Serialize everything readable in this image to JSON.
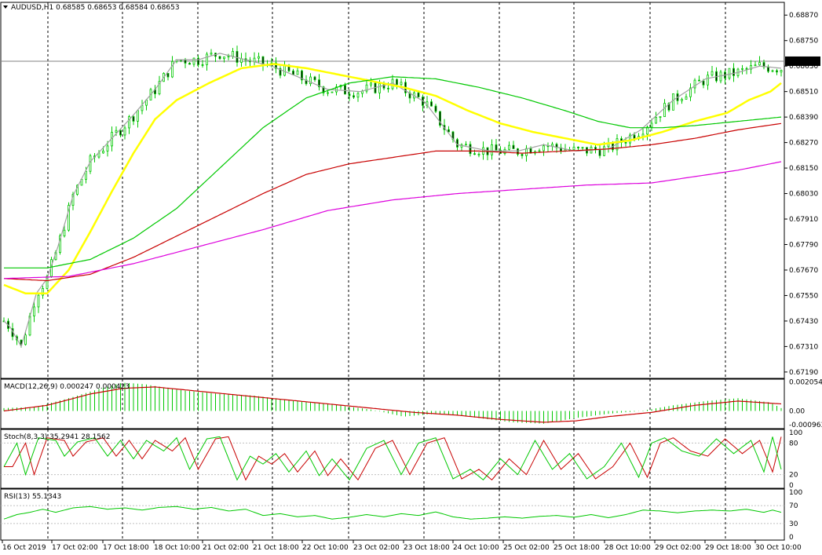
{
  "chart_data": [
    {
      "type": "candlestick",
      "panel": "price",
      "title": "AUDUSD,H1",
      "ohlc_text": "0.68585 0.68653 0.68584 0.68653",
      "current_price": "0.68653",
      "ylim": [
        0.6716,
        0.6893
      ],
      "y_ticks": [
        "0.68870",
        "0.68750",
        "0.68630",
        "0.68510",
        "0.68390",
        "0.68270",
        "0.68150",
        "0.68030",
        "0.67910",
        "0.67790",
        "0.67670",
        "0.67550",
        "0.67430",
        "0.67310",
        "0.67190"
      ],
      "x_ticks": [
        "16 Oct 2019",
        "17 Oct 02:00",
        "17 Oct 18:00",
        "18 Oct 10:00",
        "21 Oct 02:00",
        "21 Oct 18:00",
        "22 Oct 10:00",
        "23 Oct 02:00",
        "23 Oct 18:00",
        "24 Oct 10:00",
        "25 Oct 02:00",
        "25 Oct 18:00",
        "28 Oct 10:00",
        "29 Oct 02:00",
        "29 Oct 18:00",
        "30 Oct 10:00"
      ],
      "up_color": "#00c800",
      "down_color": "#00c800",
      "series": [
        {
          "color": "#a0a0a0",
          "points": [
            [
              0,
              0.6743
            ],
            [
              3,
              0.674
            ],
            [
              8,
              0.6731
            ],
            [
              12,
              0.6745
            ],
            [
              15,
              0.6756
            ],
            [
              20,
              0.6763
            ],
            [
              25,
              0.6778
            ],
            [
              32,
              0.6802
            ],
            [
              40,
              0.6818
            ],
            [
              50,
              0.6829
            ],
            [
              60,
              0.684
            ],
            [
              70,
              0.6852
            ],
            [
              80,
              0.6866
            ],
            [
              90,
              0.6866
            ],
            [
              100,
              0.6869
            ],
            [
              112,
              0.6866
            ],
            [
              124,
              0.6863
            ],
            [
              136,
              0.6858
            ],
            [
              150,
              0.6852
            ],
            [
              165,
              0.6851
            ],
            [
              180,
              0.6855
            ],
            [
              195,
              0.6846
            ],
            [
              210,
              0.6826
            ],
            [
              225,
              0.6823
            ],
            [
              238,
              0.6823
            ],
            [
              250,
              0.6826
            ],
            [
              265,
              0.6823
            ],
            [
              280,
              0.6824
            ],
            [
              295,
              0.6833
            ],
            [
              310,
              0.6847
            ],
            [
              325,
              0.6857
            ],
            [
              340,
              0.686
            ],
            [
              350,
              0.6863
            ],
            [
              360,
              0.6862
            ]
          ]
        },
        {
          "color": "#ffff00",
          "points": [
            [
              0,
              0.676
            ],
            [
              10,
              0.6756
            ],
            [
              20,
              0.6756
            ],
            [
              30,
              0.6767
            ],
            [
              40,
              0.6785
            ],
            [
              50,
              0.6804
            ],
            [
              60,
              0.6822
            ],
            [
              70,
              0.6838
            ],
            [
              80,
              0.6847
            ],
            [
              95,
              0.6855
            ],
            [
              110,
              0.6862
            ],
            [
              125,
              0.6864
            ],
            [
              140,
              0.6862
            ],
            [
              155,
              0.6859
            ],
            [
              170,
              0.6856
            ],
            [
              185,
              0.6853
            ],
            [
              200,
              0.6849
            ],
            [
              215,
              0.6842
            ],
            [
              230,
              0.6836
            ],
            [
              245,
              0.6832
            ],
            [
              260,
              0.6829
            ],
            [
              275,
              0.6826
            ],
            [
              290,
              0.6828
            ],
            [
              305,
              0.6832
            ],
            [
              320,
              0.6837
            ],
            [
              335,
              0.6841
            ],
            [
              345,
              0.6847
            ],
            [
              355,
              0.6851
            ],
            [
              360,
              0.6855
            ]
          ]
        },
        {
          "color": "#00c800",
          "points": [
            [
              0,
              0.6768
            ],
            [
              20,
              0.6768
            ],
            [
              40,
              0.6772
            ],
            [
              60,
              0.6782
            ],
            [
              80,
              0.6796
            ],
            [
              100,
              0.6815
            ],
            [
              120,
              0.6834
            ],
            [
              140,
              0.6848
            ],
            [
              160,
              0.6855
            ],
            [
              180,
              0.6858
            ],
            [
              200,
              0.6857
            ],
            [
              220,
              0.6853
            ],
            [
              240,
              0.6848
            ],
            [
              260,
              0.6842
            ],
            [
              275,
              0.6837
            ],
            [
              290,
              0.6834
            ],
            [
              305,
              0.6834
            ],
            [
              320,
              0.6835
            ],
            [
              340,
              0.6837
            ],
            [
              360,
              0.6839
            ]
          ]
        },
        {
          "color": "#c80000",
          "points": [
            [
              0,
              0.6763
            ],
            [
              20,
              0.6762
            ],
            [
              40,
              0.6765
            ],
            [
              60,
              0.6773
            ],
            [
              80,
              0.6783
            ],
            [
              100,
              0.6793
            ],
            [
              120,
              0.6803
            ],
            [
              140,
              0.6812
            ],
            [
              160,
              0.6817
            ],
            [
              180,
              0.682
            ],
            [
              200,
              0.6823
            ],
            [
              220,
              0.6823
            ],
            [
              240,
              0.6822
            ],
            [
              260,
              0.6823
            ],
            [
              280,
              0.6824
            ],
            [
              300,
              0.6826
            ],
            [
              320,
              0.6829
            ],
            [
              340,
              0.6833
            ],
            [
              360,
              0.6836
            ]
          ]
        },
        {
          "color": "#dd00dd",
          "points": [
            [
              0,
              0.6763
            ],
            [
              30,
              0.6764
            ],
            [
              60,
              0.677
            ],
            [
              90,
              0.6778
            ],
            [
              120,
              0.6786
            ],
            [
              150,
              0.6795
            ],
            [
              180,
              0.68
            ],
            [
              210,
              0.6803
            ],
            [
              240,
              0.6805
            ],
            [
              270,
              0.6807
            ],
            [
              300,
              0.6808
            ],
            [
              320,
              0.6811
            ],
            [
              340,
              0.6814
            ],
            [
              360,
              0.6818
            ]
          ]
        }
      ]
    },
    {
      "type": "histogram",
      "panel": "macd",
      "title": "MACD(12,26,9) 0.000247 0.000423",
      "ylim": [
        -0.00125,
        0.00225
      ],
      "y_ticks": [
        "0.002054",
        "0.00",
        "-0.000963"
      ],
      "bar_color": "#00c800",
      "signal_color": "#c80000",
      "points": [
        [
          0,
          0.0002
        ],
        [
          15,
          0.0003
        ],
        [
          30,
          0.0009
        ],
        [
          45,
          0.0016
        ],
        [
          55,
          0.002
        ],
        [
          65,
          0.0019
        ],
        [
          80,
          0.0015
        ],
        [
          100,
          0.0012
        ],
        [
          115,
          0.0011
        ],
        [
          130,
          0.0008
        ],
        [
          150,
          0.0005
        ],
        [
          170,
          0.0001
        ],
        [
          185,
          -0.0004
        ],
        [
          200,
          -0.0002
        ],
        [
          215,
          -0.0004
        ],
        [
          235,
          -0.0008
        ],
        [
          250,
          -0.0009
        ],
        [
          265,
          -0.0005
        ],
        [
          280,
          -0.0002
        ],
        [
          295,
          0.0
        ],
        [
          310,
          0.0004
        ],
        [
          325,
          0.0007
        ],
        [
          340,
          0.0009
        ],
        [
          355,
          0.0006
        ],
        [
          360,
          0.0002
        ]
      ],
      "signal": [
        [
          0,
          0.0
        ],
        [
          20,
          0.0004
        ],
        [
          40,
          0.0012
        ],
        [
          55,
          0.0016
        ],
        [
          70,
          0.0017
        ],
        [
          90,
          0.0014
        ],
        [
          110,
          0.0011
        ],
        [
          130,
          0.0008
        ],
        [
          150,
          0.0005
        ],
        [
          170,
          0.0002
        ],
        [
          190,
          -0.0001
        ],
        [
          210,
          -0.0003
        ],
        [
          230,
          -0.0006
        ],
        [
          250,
          -0.0008
        ],
        [
          265,
          -0.0007
        ],
        [
          280,
          -0.0004
        ],
        [
          300,
          -0.0001
        ],
        [
          320,
          0.0004
        ],
        [
          340,
          0.0007
        ],
        [
          360,
          0.0005
        ]
      ]
    },
    {
      "type": "line",
      "panel": "stoch",
      "title": "Stoch(8,3,3) 35.2941 28.1562",
      "ylim": [
        0,
        100
      ],
      "y_ticks": [
        "100",
        "80",
        "20",
        "0"
      ],
      "levels": [
        80,
        20
      ],
      "main_color": "#00c800",
      "signal_color": "#c80000",
      "points": [
        [
          0,
          35
        ],
        [
          6,
          80
        ],
        [
          10,
          20
        ],
        [
          16,
          90
        ],
        [
          24,
          85
        ],
        [
          28,
          55
        ],
        [
          34,
          82
        ],
        [
          42,
          90
        ],
        [
          48,
          55
        ],
        [
          54,
          85
        ],
        [
          60,
          50
        ],
        [
          66,
          85
        ],
        [
          74,
          65
        ],
        [
          80,
          90
        ],
        [
          86,
          30
        ],
        [
          94,
          88
        ],
        [
          100,
          92
        ],
        [
          108,
          10
        ],
        [
          114,
          55
        ],
        [
          120,
          40
        ],
        [
          126,
          60
        ],
        [
          132,
          25
        ],
        [
          140,
          65
        ],
        [
          146,
          18
        ],
        [
          152,
          50
        ],
        [
          160,
          10
        ],
        [
          168,
          70
        ],
        [
          176,
          85
        ],
        [
          184,
          20
        ],
        [
          192,
          80
        ],
        [
          200,
          90
        ],
        [
          208,
          12
        ],
        [
          216,
          30
        ],
        [
          222,
          10
        ],
        [
          230,
          50
        ],
        [
          238,
          20
        ],
        [
          246,
          85
        ],
        [
          254,
          30
        ],
        [
          262,
          60
        ],
        [
          270,
          12
        ],
        [
          278,
          35
        ],
        [
          286,
          80
        ],
        [
          294,
          15
        ],
        [
          300,
          80
        ],
        [
          306,
          90
        ],
        [
          314,
          65
        ],
        [
          322,
          55
        ],
        [
          330,
          88
        ],
        [
          338,
          60
        ],
        [
          346,
          85
        ],
        [
          352,
          25
        ],
        [
          356,
          92
        ],
        [
          360,
          30
        ]
      ]
    },
    {
      "type": "line",
      "panel": "rsi",
      "title": "RSI(13) 55.1343",
      "ylim": [
        0,
        100
      ],
      "y_ticks": [
        "100",
        "70",
        "30",
        "0"
      ],
      "levels": [
        70,
        30
      ],
      "line_color": "#00c800",
      "points": [
        [
          0,
          40
        ],
        [
          6,
          50
        ],
        [
          12,
          55
        ],
        [
          18,
          62
        ],
        [
          24,
          55
        ],
        [
          32,
          65
        ],
        [
          40,
          68
        ],
        [
          48,
          62
        ],
        [
          56,
          65
        ],
        [
          64,
          60
        ],
        [
          72,
          66
        ],
        [
          80,
          68
        ],
        [
          88,
          62
        ],
        [
          96,
          66
        ],
        [
          104,
          58
        ],
        [
          112,
          62
        ],
        [
          120,
          48
        ],
        [
          128,
          52
        ],
        [
          136,
          45
        ],
        [
          144,
          48
        ],
        [
          152,
          40
        ],
        [
          160,
          44
        ],
        [
          168,
          50
        ],
        [
          176,
          45
        ],
        [
          184,
          52
        ],
        [
          192,
          48
        ],
        [
          200,
          56
        ],
        [
          208,
          45
        ],
        [
          216,
          40
        ],
        [
          224,
          42
        ],
        [
          232,
          45
        ],
        [
          240,
          42
        ],
        [
          248,
          46
        ],
        [
          256,
          48
        ],
        [
          264,
          44
        ],
        [
          272,
          50
        ],
        [
          280,
          43
        ],
        [
          288,
          50
        ],
        [
          296,
          60
        ],
        [
          304,
          58
        ],
        [
          312,
          54
        ],
        [
          320,
          58
        ],
        [
          328,
          60
        ],
        [
          336,
          58
        ],
        [
          344,
          62
        ],
        [
          352,
          55
        ],
        [
          356,
          60
        ],
        [
          360,
          55
        ]
      ]
    }
  ]
}
